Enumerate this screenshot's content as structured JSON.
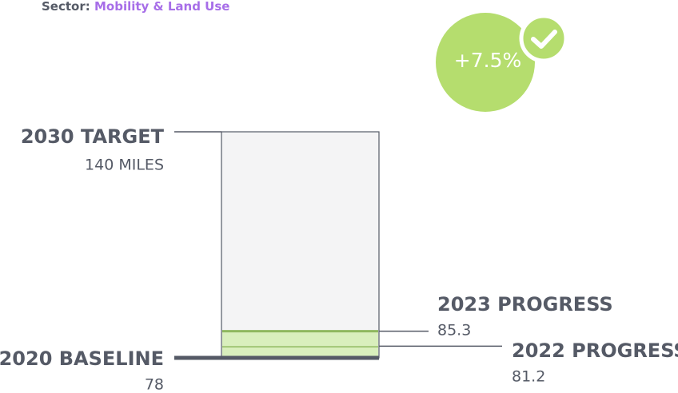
{
  "chart_data": {
    "type": "progress",
    "sector_label": "Sector:",
    "sector": "Mobility & Land Use",
    "badge": "+7.5%",
    "baseline": {
      "label": "2020 BASELINE",
      "value": 78
    },
    "progress": [
      {
        "label": "2022 PROGRESS",
        "value": 81.2
      },
      {
        "label": "2023 PROGRESS",
        "value": 85.3
      }
    ],
    "target": {
      "label": "2030 TARGET",
      "value": 140,
      "value_label": "140 MILES"
    },
    "colors": {
      "target": "#f4f4f5",
      "progress": "#d9efbd",
      "progress_line": "#8fb85f",
      "baseline": "#555a66",
      "badge": "#b5dd6e",
      "sector": "#a76ee8"
    }
  }
}
